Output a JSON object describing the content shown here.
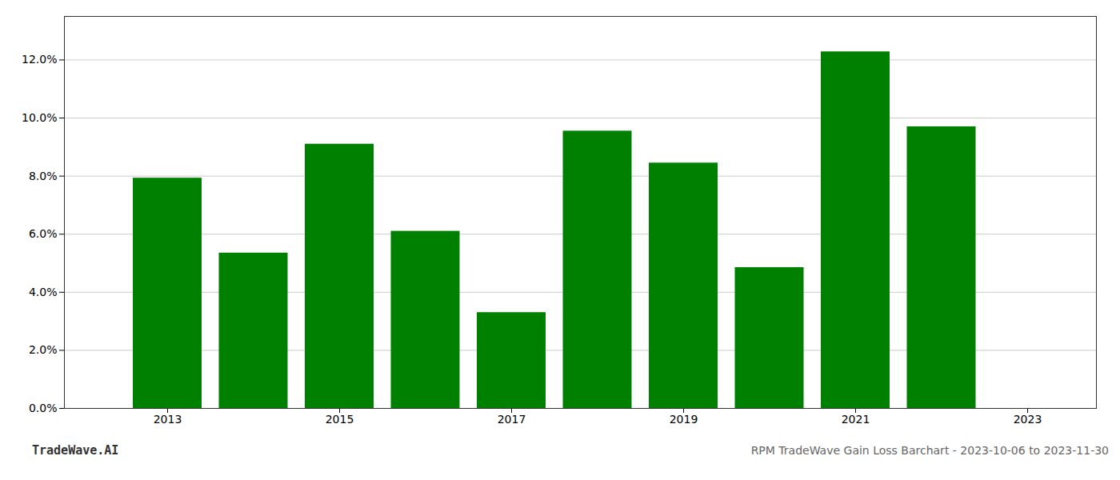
{
  "chart_data": {
    "type": "bar",
    "title": "RPM TradeWave Gain Loss Barchart - 2023-10-06 to 2023-11-30",
    "annotations": [
      "TradeWave.AI"
    ],
    "x": [
      2013,
      2014,
      2015,
      2016,
      2017,
      2018,
      2019,
      2020,
      2021,
      2022
    ],
    "values": [
      0.0793,
      0.0535,
      0.091,
      0.061,
      0.033,
      0.0955,
      0.0845,
      0.0485,
      0.1228,
      0.097
    ],
    "color": "#008000",
    "xlim": [
      2011.8,
      2023.8
    ],
    "xticks": [
      2013,
      2015,
      2017,
      2019,
      2021,
      2023
    ],
    "ylim": [
      0,
      0.135
    ],
    "yticks": [
      {
        "value": 0.0,
        "label": "0.0%"
      },
      {
        "value": 0.02,
        "label": "2.0%"
      },
      {
        "value": 0.04,
        "label": "4.0%"
      },
      {
        "value": 0.06,
        "label": "6.0%"
      },
      {
        "value": 0.08,
        "label": "8.0%"
      },
      {
        "value": 0.1,
        "label": "10.0%"
      },
      {
        "value": 0.12,
        "label": "12.0%"
      }
    ],
    "grid": true
  }
}
